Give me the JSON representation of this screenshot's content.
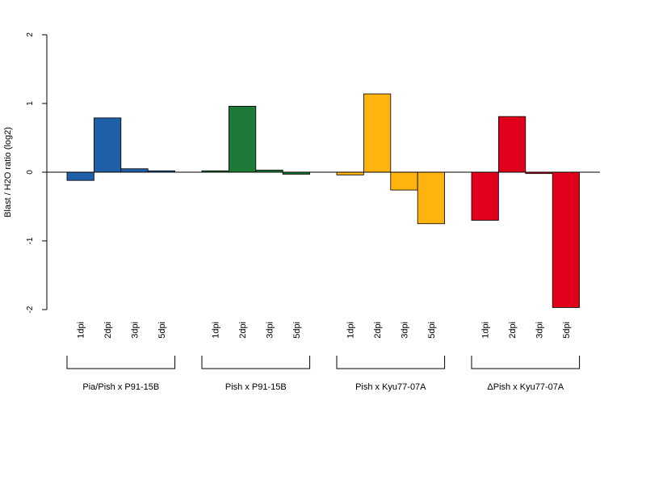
{
  "chart_data": {
    "type": "bar",
    "ylabel": "Blast / H2O ratio (log2)",
    "ylim": [
      -2,
      2
    ],
    "yticks": [
      -2,
      -1,
      0,
      1,
      2
    ],
    "categories": [
      "1dpi",
      "2dpi",
      "3dpi",
      "5dpi"
    ],
    "baseline": 0,
    "groups": [
      {
        "name": "Pia/Pish x P91-15B",
        "color": "#1f5fa8",
        "values": [
          -0.12,
          0.79,
          0.05,
          0.02
        ]
      },
      {
        "name": "Pish x P91-15B",
        "color": "#1e7b37",
        "values": [
          0.02,
          0.96,
          0.03,
          -0.03
        ]
      },
      {
        "name": "Pish x Kyu77-07A",
        "color": "#ffb30f",
        "values": [
          -0.04,
          1.14,
          -0.26,
          -0.75
        ]
      },
      {
        "name": "ΔPish x Kyu77-07A",
        "color": "#e0001b",
        "values": [
          -0.7,
          0.81,
          -0.02,
          -1.97
        ]
      }
    ]
  }
}
